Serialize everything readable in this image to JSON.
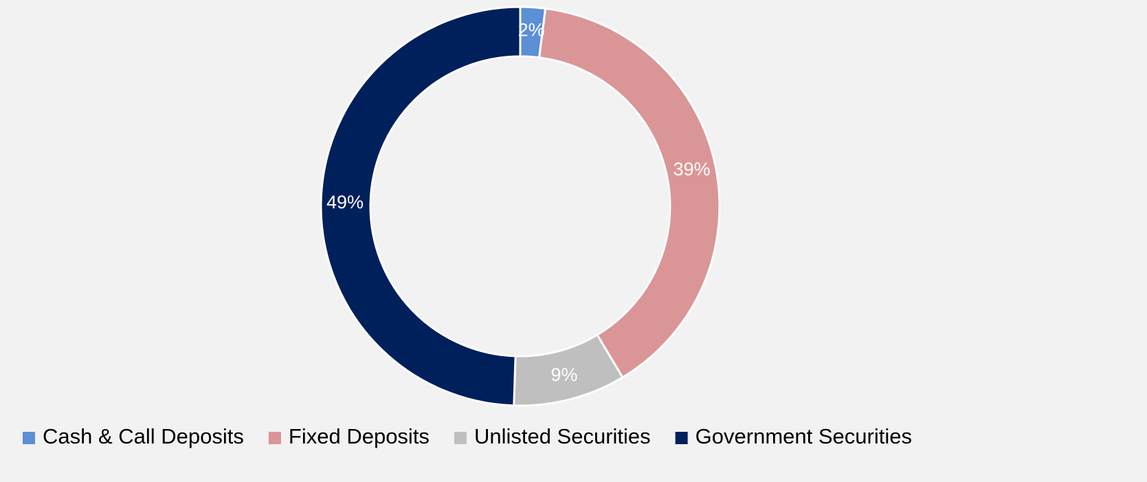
{
  "chart_data": {
    "type": "donut",
    "categories": [
      "Cash & Call Deposits",
      "Fixed Deposits",
      "Unlisted Securities",
      "Government Securities"
    ],
    "values": [
      2,
      39,
      9,
      49
    ],
    "value_labels": [
      "2%",
      "39%",
      "9%",
      "49%"
    ],
    "colors": [
      "#5b8fd6",
      "#da9696",
      "#bfbfbf",
      "#00205c"
    ],
    "legend": "bottom"
  }
}
